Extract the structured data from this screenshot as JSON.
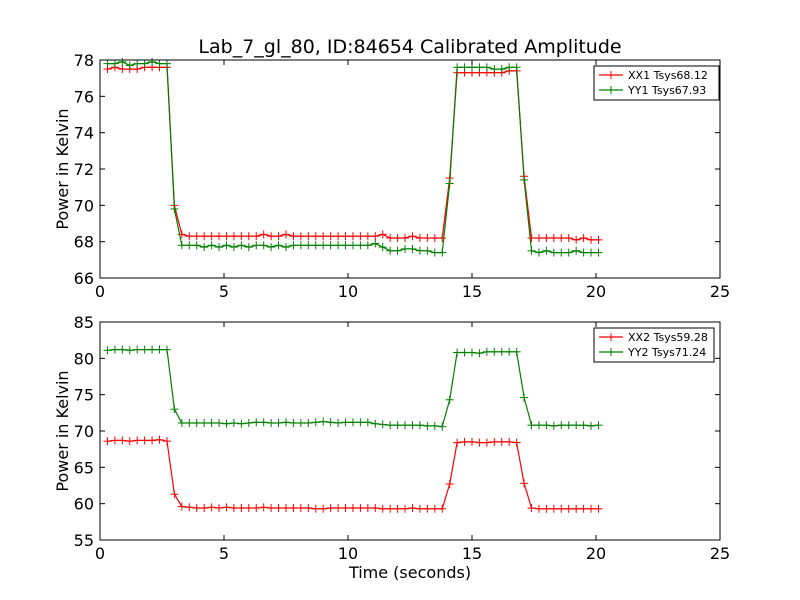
{
  "title": "Lab_7_gl_80, ID:84654 Calibrated Amplitude",
  "xlabel": "Time (seconds)",
  "colors": {
    "XX": "#ff0000",
    "YY": "#008000",
    "axes": "#000000"
  },
  "chart_data": [
    {
      "type": "line",
      "title": "Lab_7_gl_80, ID:84654 Calibrated Amplitude",
      "xlabel": "",
      "ylabel": "Power in Kelvin",
      "xlim": [
        0,
        25
      ],
      "ylim": [
        66,
        78
      ],
      "xticks": [
        "0",
        "5",
        "10",
        "15",
        "20",
        "25"
      ],
      "yticks": [
        "66",
        "68",
        "70",
        "72",
        "74",
        "76",
        "78"
      ],
      "legend": "top-right",
      "grid": false,
      "x": [
        0.3,
        0.6,
        0.9,
        1.2,
        1.5,
        1.8,
        2.1,
        2.4,
        2.7,
        3.0,
        3.3,
        3.6,
        3.9,
        4.2,
        4.5,
        4.8,
        5.1,
        5.4,
        5.7,
        6.0,
        6.3,
        6.6,
        6.9,
        7.2,
        7.5,
        7.8,
        8.1,
        8.4,
        8.7,
        9.0,
        9.3,
        9.6,
        9.9,
        10.2,
        10.5,
        10.8,
        11.1,
        11.4,
        11.7,
        12.0,
        12.3,
        12.6,
        12.9,
        13.2,
        13.5,
        13.8,
        14.1,
        14.4,
        14.7,
        15.0,
        15.3,
        15.6,
        15.9,
        16.2,
        16.5,
        16.8,
        17.1,
        17.4,
        17.7,
        18.0,
        18.3,
        18.6,
        18.9,
        19.2,
        19.5,
        19.8,
        20.1
      ],
      "series": [
        {
          "name": "XX1 Tsys68.12",
          "color": "#ff0000",
          "values": [
            77.5,
            77.6,
            77.5,
            77.5,
            77.5,
            77.6,
            77.6,
            77.6,
            77.6,
            70.0,
            68.4,
            68.3,
            68.3,
            68.3,
            68.3,
            68.3,
            68.3,
            68.3,
            68.3,
            68.3,
            68.3,
            68.4,
            68.3,
            68.3,
            68.4,
            68.3,
            68.3,
            68.3,
            68.3,
            68.3,
            68.3,
            68.3,
            68.3,
            68.3,
            68.3,
            68.3,
            68.3,
            68.4,
            68.2,
            68.2,
            68.2,
            68.3,
            68.2,
            68.2,
            68.2,
            68.2,
            71.5,
            77.3,
            77.3,
            77.3,
            77.3,
            77.3,
            77.3,
            77.3,
            77.4,
            77.4,
            71.6,
            68.2,
            68.2,
            68.2,
            68.2,
            68.2,
            68.2,
            68.1,
            68.2,
            68.1,
            68.1
          ]
        },
        {
          "name": "YY1 Tsys67.93",
          "color": "#008000",
          "values": [
            77.8,
            77.8,
            77.9,
            77.7,
            77.8,
            77.8,
            77.9,
            77.8,
            77.8,
            69.8,
            67.8,
            67.8,
            67.8,
            67.7,
            67.8,
            67.7,
            67.8,
            67.7,
            67.8,
            67.7,
            67.8,
            67.8,
            67.7,
            67.8,
            67.7,
            67.8,
            67.8,
            67.8,
            67.8,
            67.8,
            67.8,
            67.8,
            67.8,
            67.8,
            67.8,
            67.8,
            67.9,
            67.7,
            67.5,
            67.5,
            67.6,
            67.6,
            67.5,
            67.5,
            67.4,
            67.4,
            71.2,
            77.6,
            77.6,
            77.6,
            77.6,
            77.6,
            77.5,
            77.5,
            77.6,
            77.6,
            71.4,
            67.5,
            67.4,
            67.5,
            67.4,
            67.4,
            67.4,
            67.5,
            67.4,
            67.4,
            67.4
          ]
        }
      ]
    },
    {
      "type": "line",
      "title": "",
      "xlabel": "Time (seconds)",
      "ylabel": "Power in Kelvin",
      "xlim": [
        0,
        25
      ],
      "ylim": [
        55,
        85
      ],
      "xticks": [
        "0",
        "5",
        "10",
        "15",
        "20",
        "25"
      ],
      "yticks": [
        "55",
        "60",
        "65",
        "70",
        "75",
        "80",
        "85"
      ],
      "legend": "top-right",
      "grid": false,
      "x": [
        0.3,
        0.6,
        0.9,
        1.2,
        1.5,
        1.8,
        2.1,
        2.4,
        2.7,
        3.0,
        3.3,
        3.6,
        3.9,
        4.2,
        4.5,
        4.8,
        5.1,
        5.4,
        5.7,
        6.0,
        6.3,
        6.6,
        6.9,
        7.2,
        7.5,
        7.8,
        8.1,
        8.4,
        8.7,
        9.0,
        9.3,
        9.6,
        9.9,
        10.2,
        10.5,
        10.8,
        11.1,
        11.4,
        11.7,
        12.0,
        12.3,
        12.6,
        12.9,
        13.2,
        13.5,
        13.8,
        14.1,
        14.4,
        14.7,
        15.0,
        15.3,
        15.6,
        15.9,
        16.2,
        16.5,
        16.8,
        17.1,
        17.4,
        17.7,
        18.0,
        18.3,
        18.6,
        18.9,
        19.2,
        19.5,
        19.8,
        20.1
      ],
      "series": [
        {
          "name": "XX2 Tsys59.28",
          "color": "#ff0000",
          "values": [
            68.6,
            68.7,
            68.7,
            68.6,
            68.7,
            68.7,
            68.7,
            68.8,
            68.6,
            61.3,
            59.6,
            59.5,
            59.4,
            59.4,
            59.5,
            59.4,
            59.5,
            59.4,
            59.4,
            59.4,
            59.4,
            59.5,
            59.4,
            59.4,
            59.4,
            59.4,
            59.4,
            59.4,
            59.3,
            59.3,
            59.4,
            59.4,
            59.4,
            59.4,
            59.4,
            59.4,
            59.4,
            59.3,
            59.3,
            59.3,
            59.3,
            59.4,
            59.3,
            59.3,
            59.3,
            59.3,
            62.7,
            68.4,
            68.5,
            68.5,
            68.4,
            68.4,
            68.5,
            68.5,
            68.5,
            68.4,
            62.8,
            59.4,
            59.3,
            59.3,
            59.3,
            59.3,
            59.3,
            59.3,
            59.3,
            59.3,
            59.3
          ]
        },
        {
          "name": "YY2 Tsys71.24",
          "color": "#008000",
          "values": [
            81.1,
            81.2,
            81.2,
            81.1,
            81.2,
            81.2,
            81.2,
            81.2,
            81.2,
            73.0,
            71.1,
            71.1,
            71.1,
            71.1,
            71.1,
            71.1,
            71.0,
            71.1,
            71.0,
            71.1,
            71.2,
            71.2,
            71.1,
            71.1,
            71.2,
            71.1,
            71.1,
            71.1,
            71.2,
            71.3,
            71.2,
            71.1,
            71.2,
            71.2,
            71.2,
            71.2,
            71.0,
            70.9,
            70.8,
            70.8,
            70.8,
            70.8,
            70.8,
            70.7,
            70.7,
            70.6,
            74.3,
            80.8,
            80.8,
            80.8,
            80.7,
            80.9,
            80.9,
            80.9,
            80.9,
            80.9,
            74.6,
            70.8,
            70.8,
            70.8,
            70.7,
            70.8,
            70.8,
            70.8,
            70.8,
            70.7,
            70.8
          ]
        }
      ]
    }
  ]
}
